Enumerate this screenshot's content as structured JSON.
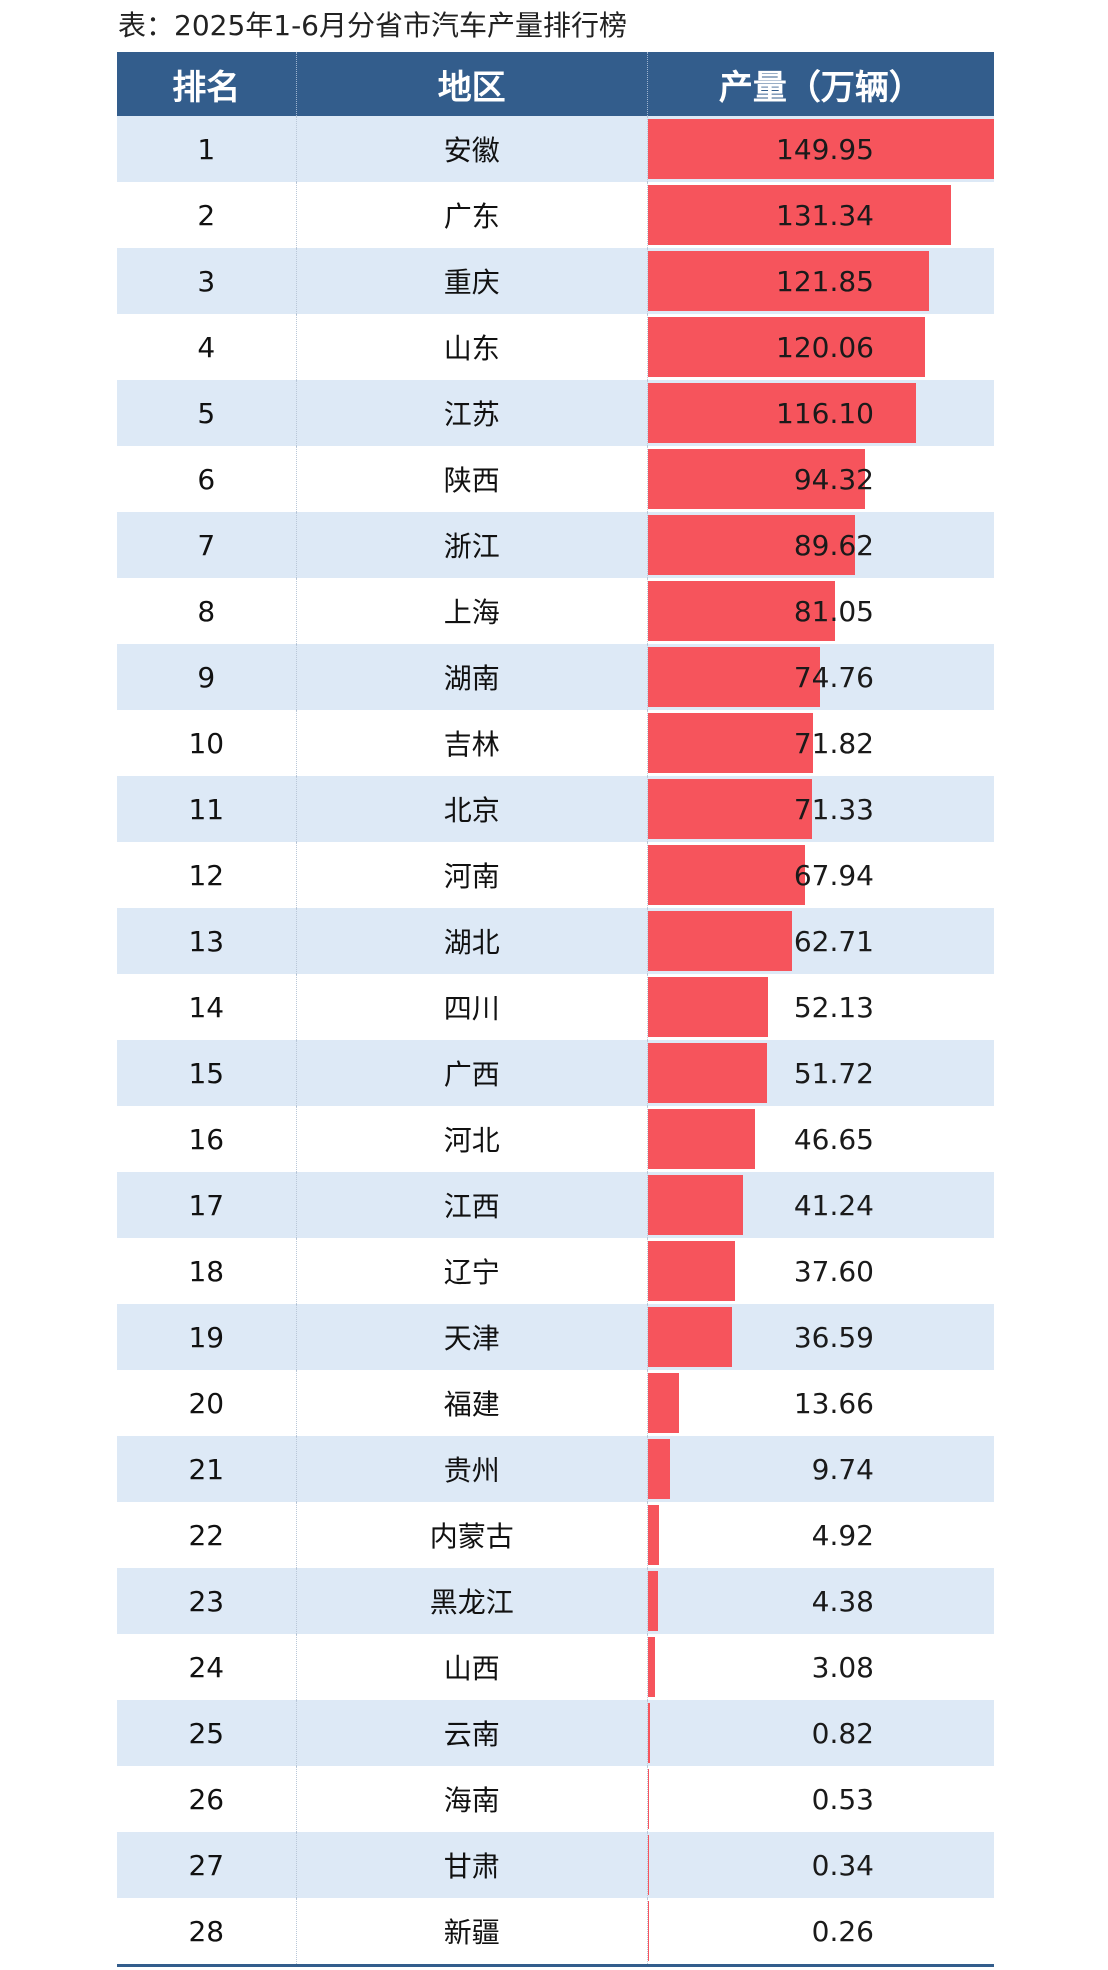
{
  "caption": "表：2025年1-6月分省市汽车产量排行榜",
  "chart_data": {
    "type": "table",
    "title": "表：2025年1-6月分省市汽车产量排行榜",
    "columns": [
      "排名",
      "地区",
      "产量（万辆）"
    ],
    "max_value": 149.95,
    "rows": [
      {
        "rank": "1",
        "region": "安徽",
        "value": 149.95,
        "label": "149.95"
      },
      {
        "rank": "2",
        "region": "广东",
        "value": 131.34,
        "label": "131.34"
      },
      {
        "rank": "3",
        "region": "重庆",
        "value": 121.85,
        "label": "121.85"
      },
      {
        "rank": "4",
        "region": "山东",
        "value": 120.06,
        "label": "120.06"
      },
      {
        "rank": "5",
        "region": "江苏",
        "value": 116.1,
        "label": "116.10"
      },
      {
        "rank": "6",
        "region": "陕西",
        "value": 94.32,
        "label": "94.32"
      },
      {
        "rank": "7",
        "region": "浙江",
        "value": 89.62,
        "label": "89.62"
      },
      {
        "rank": "8",
        "region": "上海",
        "value": 81.05,
        "label": "81.05"
      },
      {
        "rank": "9",
        "region": "湖南",
        "value": 74.76,
        "label": "74.76"
      },
      {
        "rank": "10",
        "region": "吉林",
        "value": 71.82,
        "label": "71.82"
      },
      {
        "rank": "11",
        "region": "北京",
        "value": 71.33,
        "label": "71.33"
      },
      {
        "rank": "12",
        "region": "河南",
        "value": 67.94,
        "label": "67.94"
      },
      {
        "rank": "13",
        "region": "湖北",
        "value": 62.71,
        "label": "62.71"
      },
      {
        "rank": "14",
        "region": "四川",
        "value": 52.13,
        "label": "52.13"
      },
      {
        "rank": "15",
        "region": "广西",
        "value": 51.72,
        "label": "51.72"
      },
      {
        "rank": "16",
        "region": "河北",
        "value": 46.65,
        "label": "46.65"
      },
      {
        "rank": "17",
        "region": "江西",
        "value": 41.24,
        "label": "41.24"
      },
      {
        "rank": "18",
        "region": "辽宁",
        "value": 37.6,
        "label": "37.60"
      },
      {
        "rank": "19",
        "region": "天津",
        "value": 36.59,
        "label": "36.59"
      },
      {
        "rank": "20",
        "region": "福建",
        "value": 13.66,
        "label": "13.66"
      },
      {
        "rank": "21",
        "region": "贵州",
        "value": 9.74,
        "label": "9.74"
      },
      {
        "rank": "22",
        "region": "内蒙古",
        "value": 4.92,
        "label": "4.92"
      },
      {
        "rank": "23",
        "region": "黑龙江",
        "value": 4.38,
        "label": "4.38"
      },
      {
        "rank": "24",
        "region": "山西",
        "value": 3.08,
        "label": "3.08"
      },
      {
        "rank": "25",
        "region": "云南",
        "value": 0.82,
        "label": "0.82"
      },
      {
        "rank": "26",
        "region": "海南",
        "value": 0.53,
        "label": "0.53"
      },
      {
        "rank": "27",
        "region": "甘肃",
        "value": 0.34,
        "label": "0.34"
      },
      {
        "rank": "28",
        "region": "新疆",
        "value": 0.26,
        "label": "0.26"
      }
    ]
  },
  "colors": {
    "header_bg": "#335d8c",
    "header_text": "#ffffff",
    "row_odd_bg": "#dde9f6",
    "row_even_bg": "#ffffff",
    "bar": "#f6545c"
  }
}
